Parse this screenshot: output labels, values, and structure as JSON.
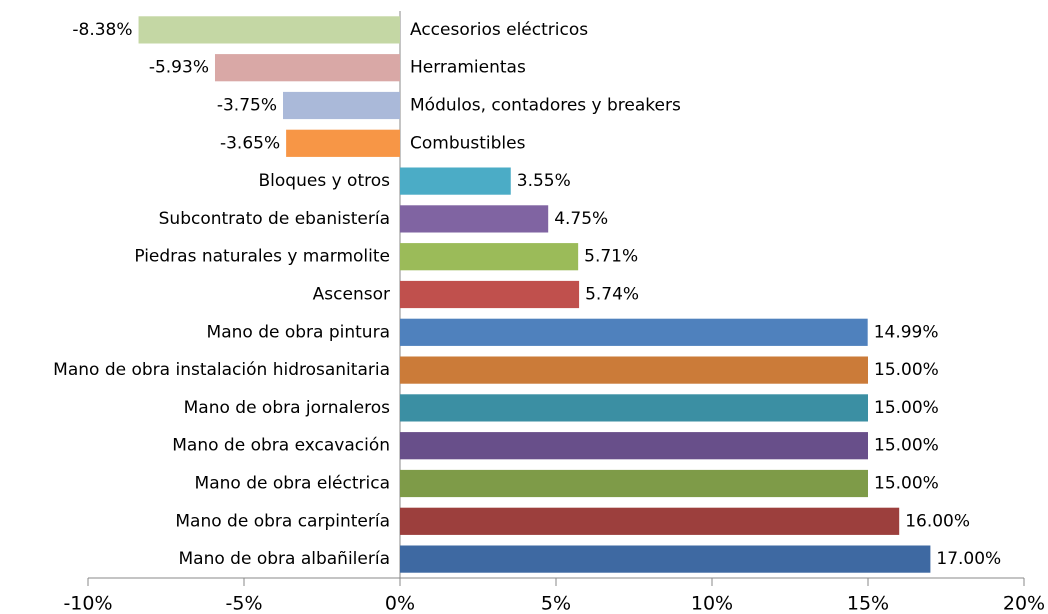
{
  "chart_data": {
    "type": "barh",
    "categories": [
      "Accesorios eléctricos",
      "Herramientas",
      "Módulos, contadores y breakers",
      "Combustibles",
      "Bloques y otros",
      "Subcontrato de ebanistería",
      "Piedras naturales y marmolite",
      "Ascensor",
      "Mano de obra pintura",
      "Mano de obra instalación hidrosanitaria",
      "Mano de obra jornaleros",
      "Mano de obra excavación",
      "Mano de obra eléctrica",
      "Mano de obra carpintería",
      "Mano de obra albañilería"
    ],
    "values": [
      -8.38,
      -5.93,
      -3.75,
      -3.65,
      3.55,
      4.75,
      5.71,
      5.74,
      14.99,
      15.0,
      15.0,
      15.0,
      15.0,
      16.0,
      17.0
    ],
    "value_labels": [
      "-8.38%",
      "-5.93%",
      "-3.75%",
      "-3.65%",
      "3.55%",
      "4.75%",
      "5.71%",
      "5.74%",
      "14.99%",
      "15.00%",
      "15.00%",
      "15.00%",
      "15.00%",
      "16.00%",
      "17.00%"
    ],
    "colors": [
      "#c4d7a4",
      "#d9a8a6",
      "#aab9d9",
      "#f79646",
      "#4bacc6",
      "#8064a2",
      "#9bbb59",
      "#c0504d",
      "#4f81bd",
      "#cb7b39",
      "#3b8fa3",
      "#684f8a",
      "#7e9b48",
      "#9c3f3d",
      "#3e69a2"
    ],
    "xlim": [
      -10,
      20
    ],
    "xticks": [
      {
        "value": -10,
        "label": "-10%"
      },
      {
        "value": -5,
        "label": "-5%"
      },
      {
        "value": 0,
        "label": "0%"
      },
      {
        "value": 5,
        "label": "5%"
      },
      {
        "value": 10,
        "label": "10%"
      },
      {
        "value": 15,
        "label": "15%"
      },
      {
        "value": 20,
        "label": "20%"
      }
    ]
  }
}
